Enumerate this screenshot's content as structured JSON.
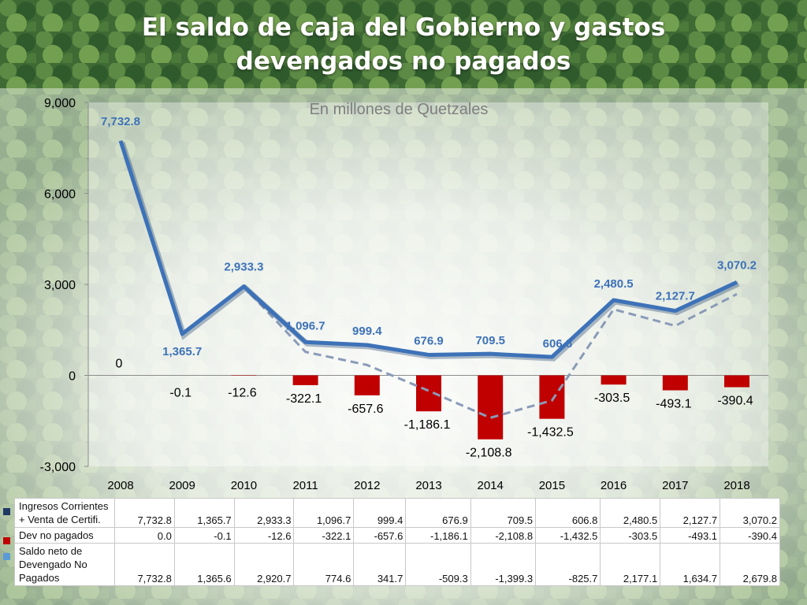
{
  "header": {
    "title_line1": "El saldo de caja del Gobierno y gastos",
    "title_line2": "devengados no pagados"
  },
  "colors": {
    "ingresos_line": "#3d72b8",
    "dev_bar": "#c00000",
    "saldo_dashed": "#8a9bb8",
    "legend_ingresos": "#1f3864",
    "legend_dev": "#c00000",
    "legend_saldo": "#5b9bd5"
  },
  "chart_data": {
    "type": "bar",
    "subtitle": "En millones de Quetzales",
    "categories": [
      "2008",
      "2009",
      "2010",
      "2011",
      "2012",
      "2013",
      "2014",
      "2015",
      "2016",
      "2017",
      "2018"
    ],
    "ylim": [
      -3000,
      9000
    ],
    "yticks": [
      "9,000",
      "6,000",
      "3,000",
      "0",
      "-3,000"
    ],
    "ytick_values": [
      9000,
      6000,
      3000,
      0,
      -3000
    ],
    "grid": false,
    "series": [
      {
        "name": "Ingresos Corrientes + Venta de Certifi.",
        "type": "line",
        "values": [
          7732.8,
          1365.7,
          2933.3,
          1096.7,
          999.4,
          676.9,
          709.5,
          606.8,
          2480.5,
          2127.7,
          3070.2
        ],
        "labels": [
          "7,732.8",
          "1,365.7",
          "2,933.3",
          "1,096.7",
          "999.4",
          "676.9",
          "709.5",
          "606.8",
          "2,480.5",
          "2,127.7",
          "3,070.2"
        ]
      },
      {
        "name": "Dev no pagados",
        "type": "bar",
        "values": [
          0.0,
          -0.1,
          -12.6,
          -322.1,
          -657.6,
          -1186.1,
          -2108.8,
          -1432.5,
          -303.5,
          -493.1,
          -390.4
        ],
        "labels": [
          "0",
          "-0.1",
          "-12.6",
          "-322.1",
          "-657.6",
          "-1,186.1",
          "-2,108.8",
          "-1,432.5",
          "-303.5",
          "-493.1",
          "-390.4"
        ]
      },
      {
        "name": "Saldo neto de Devengado No Pagados",
        "type": "dashed-line",
        "values": [
          7732.8,
          1365.6,
          2920.7,
          774.6,
          341.7,
          -509.3,
          -1399.3,
          -825.7,
          2177.1,
          1634.7,
          2679.8
        ]
      }
    ]
  },
  "table": {
    "rows": [
      {
        "label": "Ingresos Corrientes + Venta de Certifi.",
        "values": [
          "7,732.8",
          "1,365.7",
          "2,933.3",
          "1,096.7",
          "999.4",
          "676.9",
          "709.5",
          "606.8",
          "2,480.5",
          "2,127.7",
          "3,070.2"
        ]
      },
      {
        "label": "Dev no pagados",
        "values": [
          "0.0",
          "-0.1",
          "-12.6",
          "-322.1",
          "-657.6",
          "-1,186.1",
          "-2,108.8",
          "-1,432.5",
          "-303.5",
          "-493.1",
          "-390.4"
        ]
      },
      {
        "label": "Saldo neto de Devengado No Pagados",
        "values": [
          "7,732.8",
          "1,365.6",
          "2,920.7",
          "774.6",
          "341.7",
          "-509.3",
          "-1,399.3",
          "-825.7",
          "2,177.1",
          "1,634.7",
          "2,679.8"
        ]
      }
    ]
  }
}
